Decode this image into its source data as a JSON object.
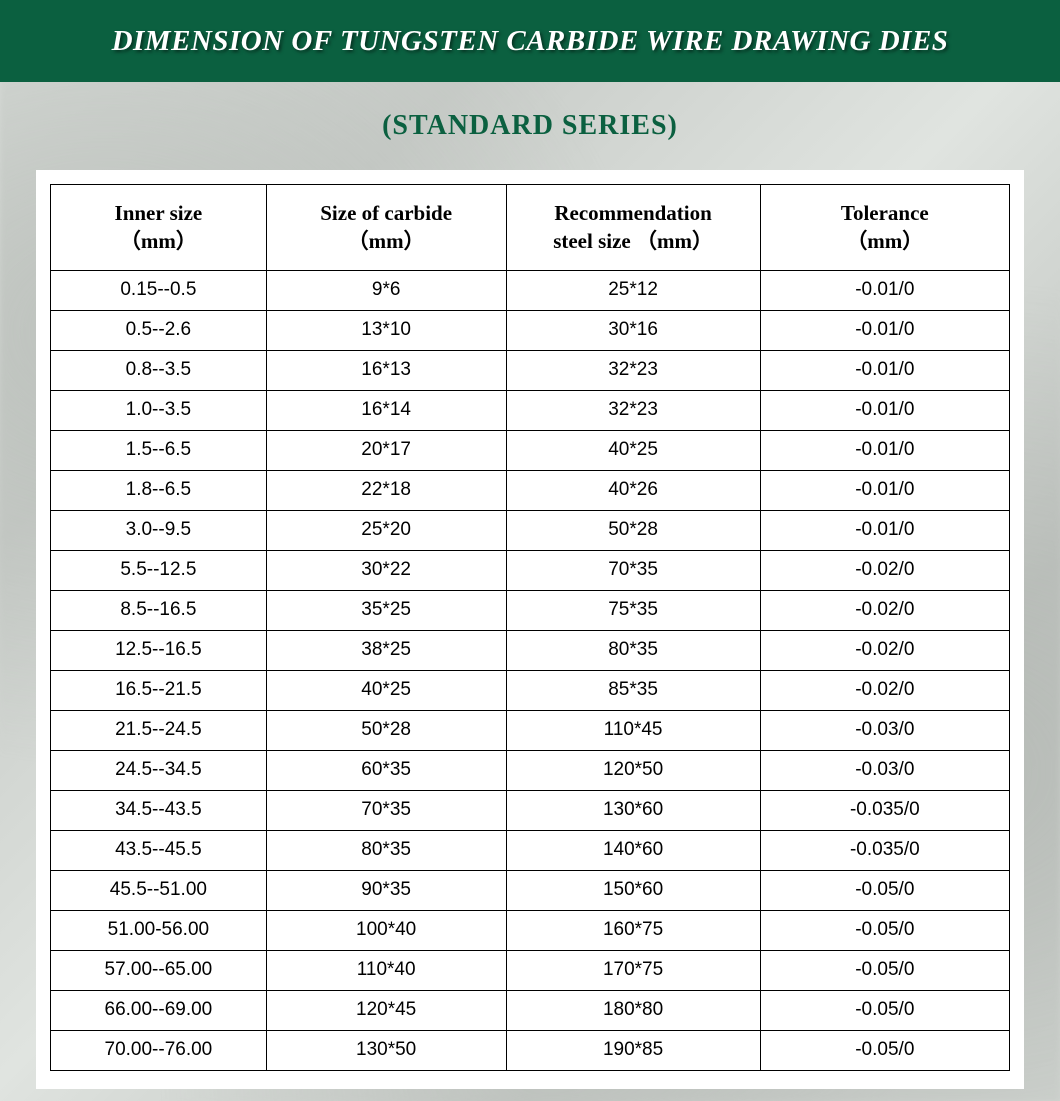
{
  "header": {
    "title": "DIMENSION OF TUNGSTEN CARBIDE WIRE DRAWING DIES",
    "subtitle": "(STANDARD SERIES)"
  },
  "table": {
    "columns": [
      {
        "line1": "Inner size",
        "line2": "（mm）"
      },
      {
        "line1": "Size of carbide",
        "line2": "（mm）"
      },
      {
        "line1": "Recommendation",
        "line2": "steel size （mm）"
      },
      {
        "line1": "Tolerance",
        "line2": "（mm）"
      }
    ],
    "rows": [
      [
        "0.15--0.5",
        "9*6",
        "25*12",
        "-0.01/0"
      ],
      [
        "0.5--2.6",
        "13*10",
        "30*16",
        "-0.01/0"
      ],
      [
        "0.8--3.5",
        "16*13",
        "32*23",
        "-0.01/0"
      ],
      [
        "1.0--3.5",
        "16*14",
        "32*23",
        "-0.01/0"
      ],
      [
        "1.5--6.5",
        "20*17",
        "40*25",
        "-0.01/0"
      ],
      [
        "1.8--6.5",
        "22*18",
        "40*26",
        "-0.01/0"
      ],
      [
        "3.0--9.5",
        "25*20",
        "50*28",
        "-0.01/0"
      ],
      [
        "5.5--12.5",
        "30*22",
        "70*35",
        "-0.02/0"
      ],
      [
        "8.5--16.5",
        "35*25",
        "75*35",
        "-0.02/0"
      ],
      [
        "12.5--16.5",
        "38*25",
        "80*35",
        "-0.02/0"
      ],
      [
        "16.5--21.5",
        "40*25",
        "85*35",
        "-0.02/0"
      ],
      [
        "21.5--24.5",
        "50*28",
        "110*45",
        "-0.03/0"
      ],
      [
        "24.5--34.5",
        "60*35",
        "120*50",
        "-0.03/0"
      ],
      [
        "34.5--43.5",
        "70*35",
        "130*60",
        "-0.035/0"
      ],
      [
        "43.5--45.5",
        "80*35",
        "140*60",
        "-0.035/0"
      ],
      [
        "45.5--51.00",
        "90*35",
        "150*60",
        "-0.05/0"
      ],
      [
        "51.00-56.00",
        "100*40",
        "160*75",
        "-0.05/0"
      ],
      [
        "57.00--65.00",
        "110*40",
        "170*75",
        "-0.05/0"
      ],
      [
        "66.00--69.00",
        "120*45",
        "180*80",
        "-0.05/0"
      ],
      [
        "70.00--76.00",
        "130*50",
        "190*85",
        "-0.05/0"
      ]
    ]
  },
  "style": {
    "header_bg": "#0b6040",
    "header_text_color": "#ffffff",
    "header_fontsize": 29,
    "subtitle_color": "#0b6040",
    "subtitle_fontsize": 28,
    "table_bg": "#ffffff",
    "border_color": "#000000",
    "th_fontsize": 21,
    "td_fontsize": 19,
    "col_widths_pct": [
      22.5,
      25,
      26.5,
      26
    ],
    "page_bg_gradient": [
      "#d8dcd8",
      "#c8ccc8",
      "#e0e4e0",
      "#c0c4c0",
      "#d0d4d0"
    ]
  }
}
